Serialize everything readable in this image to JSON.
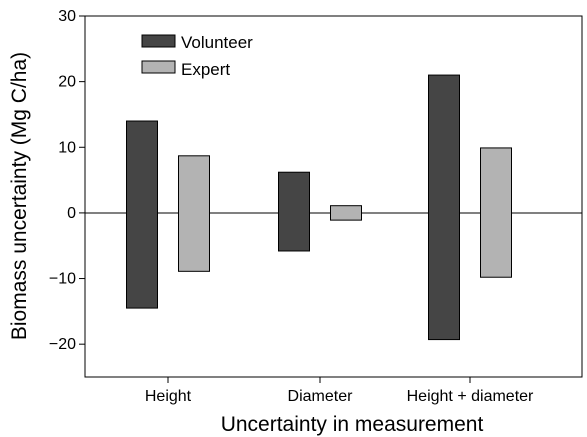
{
  "chart_data": {
    "type": "bar",
    "subtype": "floating-range",
    "xlabel": "Uncertainty in measurement",
    "ylabel": "Biomass uncertainty (Mg C/ha)",
    "ylim": [
      -25,
      30
    ],
    "yticks": [
      -20,
      -10,
      0,
      10,
      20,
      30
    ],
    "yticklabels": [
      "−20",
      "−10",
      "0",
      "10",
      "20",
      "30"
    ],
    "categories": [
      "Height",
      "Diameter",
      "Height + diameter"
    ],
    "zero_line": true,
    "grid": false,
    "legend_placement": "top-left",
    "series": [
      {
        "name": "Volunteer",
        "color": "#454545",
        "low": [
          -14.5,
          -5.8,
          -19.3
        ],
        "high": [
          14.0,
          6.2,
          21.0
        ]
      },
      {
        "name": "Expert",
        "color": "#b3b3b3",
        "low": [
          -8.9,
          -1.1,
          -9.8
        ],
        "high": [
          8.7,
          1.1,
          9.9
        ]
      }
    ]
  }
}
